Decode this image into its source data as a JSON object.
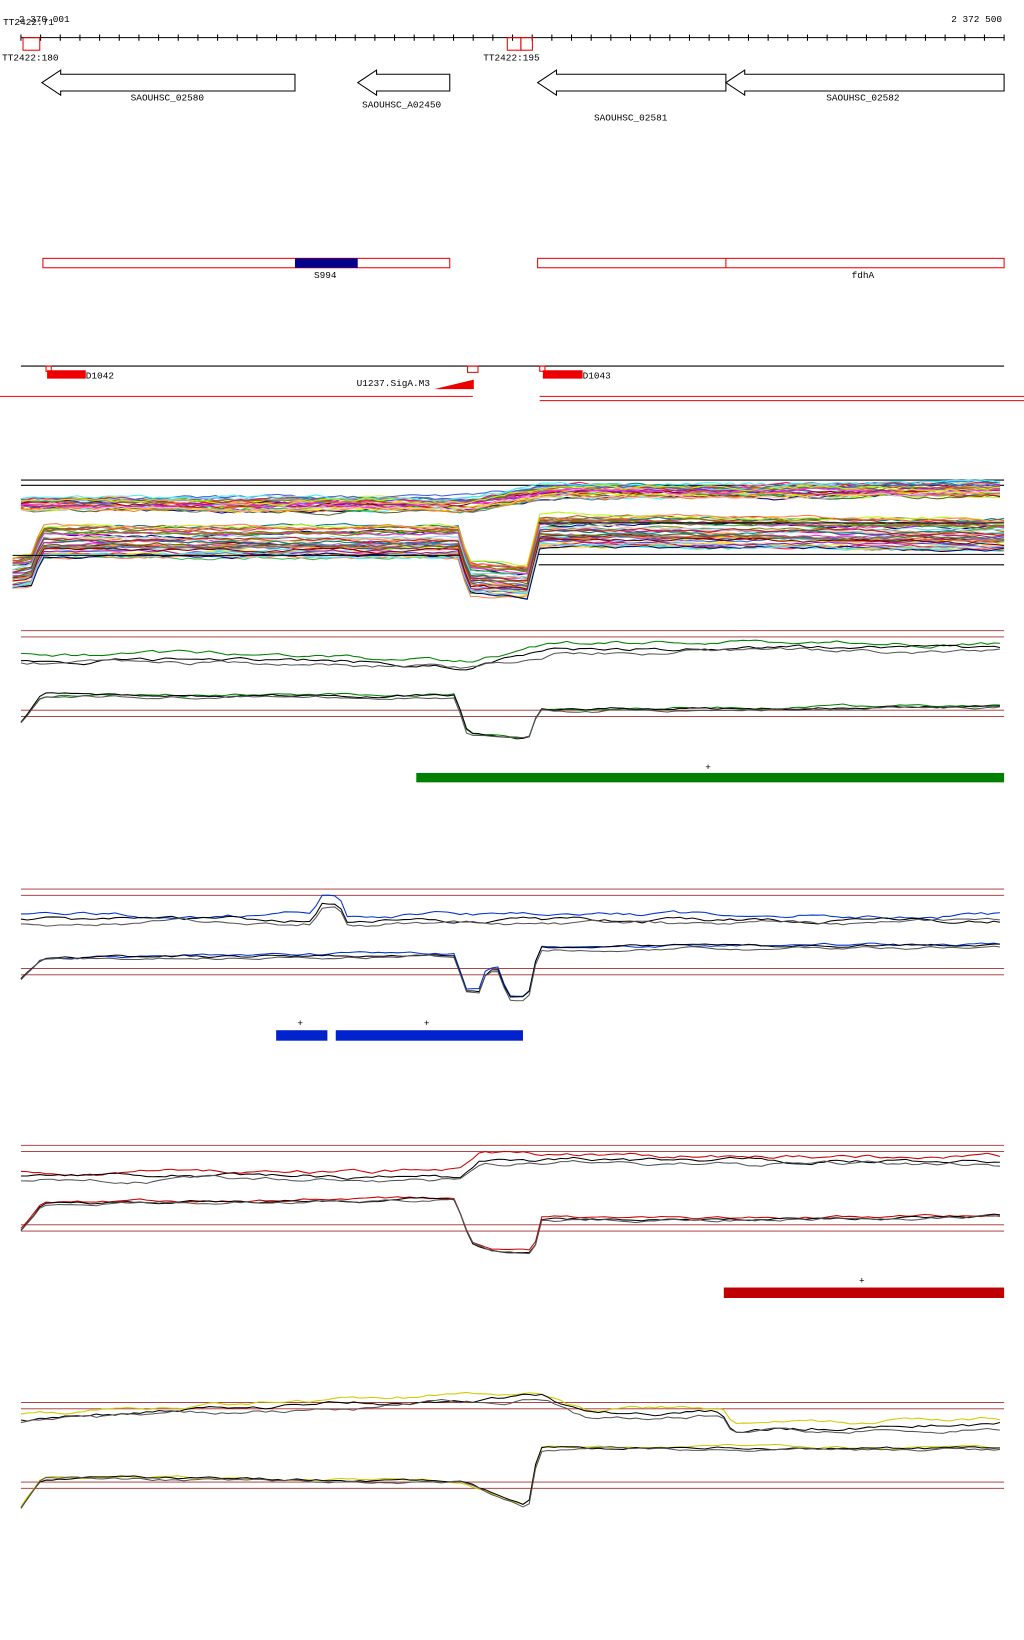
{
  "ruler": {
    "start": "2 370 001",
    "end": "2 372 500"
  },
  "terminators": [
    "TT2422:71",
    "TT2422:180",
    "TT2422:195"
  ],
  "genes": [
    "SAOUHSC_02580",
    "SAOUHSC_A02450",
    "SAOUHSC_02581",
    "SAOUHSC_02582"
  ],
  "operons": [
    "S994",
    "fdhA"
  ],
  "features": [
    "D1042",
    "U1237.SigA.M3",
    "D1043"
  ],
  "segment_marks": [
    "+",
    "+",
    "+",
    "+"
  ]
}
